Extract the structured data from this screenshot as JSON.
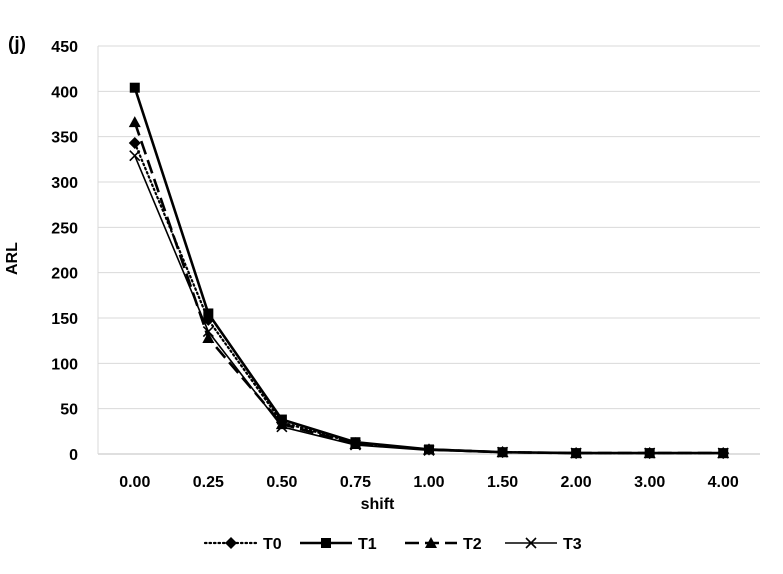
{
  "chart_data": {
    "type": "line",
    "panel_label": "(j)",
    "xlabel": "shift",
    "ylabel": "ARL",
    "categories": [
      "0.00",
      "0.25",
      "0.50",
      "0.75",
      "1.00",
      "1.50",
      "2.00",
      "3.00",
      "4.00"
    ],
    "ylim": [
      0,
      450
    ],
    "yticks": [
      "0",
      "50",
      "100",
      "150",
      "200",
      "250",
      "300",
      "350",
      "400",
      "450"
    ],
    "grid": true,
    "legend_position": "bottom",
    "series": [
      {
        "name": "T0",
        "marker": "diamond",
        "line": "dotted",
        "values": [
          343,
          148,
          35,
          12,
          5,
          2,
          1,
          1,
          1
        ]
      },
      {
        "name": "T1",
        "marker": "square",
        "line": "solid-thick",
        "values": [
          404,
          155,
          38,
          13,
          5,
          2,
          1,
          1,
          1
        ]
      },
      {
        "name": "T2",
        "marker": "triangle",
        "line": "dashed",
        "values": [
          366,
          128,
          33,
          11,
          5,
          2,
          1,
          1,
          1
        ]
      },
      {
        "name": "T3",
        "marker": "x",
        "line": "solid-thin",
        "values": [
          329,
          135,
          30,
          10,
          4,
          2,
          1,
          1,
          1
        ]
      }
    ]
  }
}
